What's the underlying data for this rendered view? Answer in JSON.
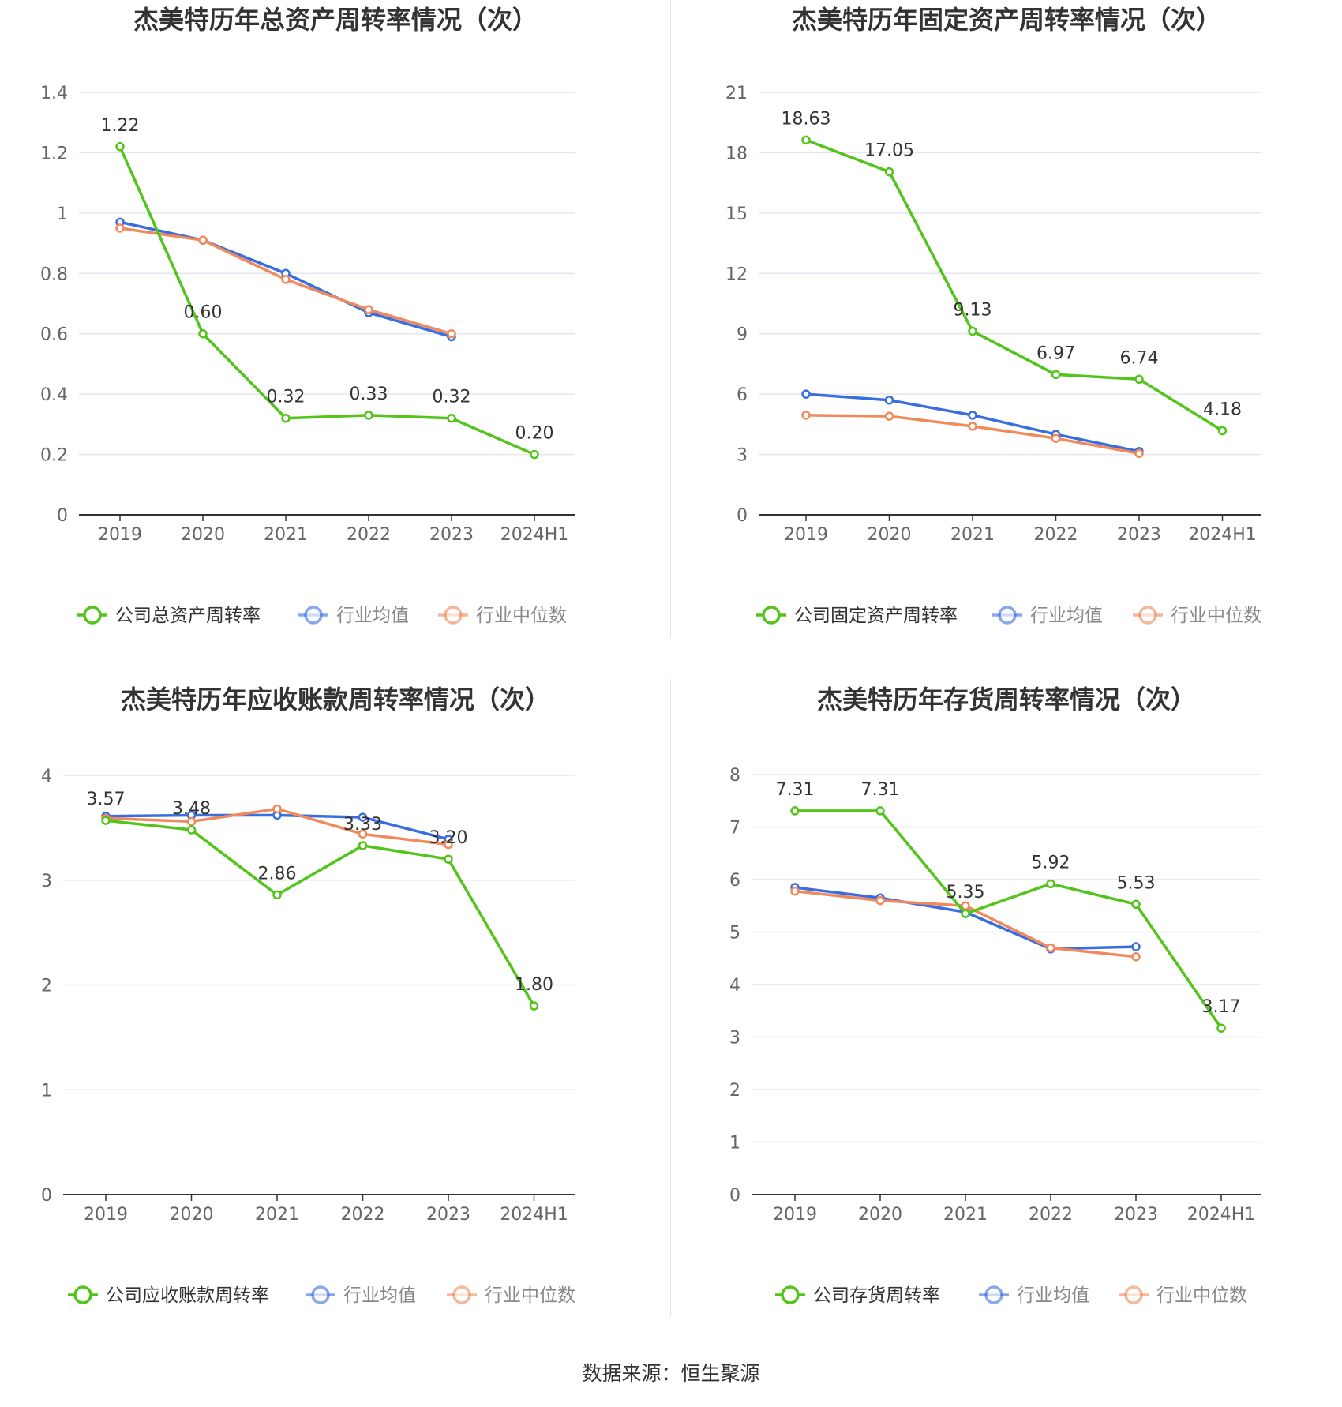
{
  "source_text": "数据来源：恒生聚源",
  "colors": {
    "company": "#52c41a",
    "avg": "#3a6ee0",
    "median": "#f08a5d",
    "grid": "#e3e6ef",
    "axis": "#333333",
    "tick": "#666666"
  },
  "chart_data": [
    {
      "type": "line",
      "title": "杰美特历年总资产周转率情况（次）",
      "categories": [
        "2019",
        "2020",
        "2021",
        "2022",
        "2023",
        "2024H1"
      ],
      "yticks": [
        "0",
        "0.2",
        "0.4",
        "0.6",
        "0.8",
        "1",
        "1.2",
        "1.4"
      ],
      "ylim": [
        0,
        1.4
      ],
      "series": [
        {
          "name": "公司总资产周转率",
          "color": "#52c41a",
          "values": [
            1.22,
            0.6,
            0.32,
            0.33,
            0.32,
            0.2
          ],
          "labels": [
            "1.22",
            "0.60",
            "0.32",
            "0.33",
            "0.32",
            "0.20"
          ]
        },
        {
          "name": "行业均值",
          "color": "#3a6ee0",
          "values": [
            0.97,
            0.91,
            0.8,
            0.67,
            0.59,
            null
          ]
        },
        {
          "name": "行业中位数",
          "color": "#f08a5d",
          "values": [
            0.95,
            0.91,
            0.78,
            0.68,
            0.6,
            null
          ]
        }
      ]
    },
    {
      "type": "line",
      "title": "杰美特历年固定资产周转率情况（次）",
      "categories": [
        "2019",
        "2020",
        "2021",
        "2022",
        "2023",
        "2024H1"
      ],
      "yticks": [
        "0",
        "3",
        "6",
        "9",
        "12",
        "15",
        "18",
        "21"
      ],
      "ylim": [
        0,
        21
      ],
      "series": [
        {
          "name": "公司固定资产周转率",
          "color": "#52c41a",
          "values": [
            18.63,
            17.05,
            9.13,
            6.97,
            6.74,
            4.18
          ],
          "labels": [
            "18.63",
            "17.05",
            "9.13",
            "6.97",
            "6.74",
            "4.18"
          ]
        },
        {
          "name": "行业均值",
          "color": "#3a6ee0",
          "values": [
            6.0,
            5.7,
            4.95,
            4.0,
            3.15,
            null
          ]
        },
        {
          "name": "行业中位数",
          "color": "#f08a5d",
          "values": [
            4.95,
            4.9,
            4.4,
            3.8,
            3.05,
            null
          ]
        }
      ]
    },
    {
      "type": "line",
      "title": "杰美特历年应收账款周转率情况（次）",
      "categories": [
        "2019",
        "2020",
        "2021",
        "2022",
        "2023",
        "2024H1"
      ],
      "yticks": [
        "0",
        "1",
        "2",
        "3",
        "4"
      ],
      "ylim": [
        0,
        4
      ],
      "series": [
        {
          "name": "公司应收账款周转率",
          "color": "#52c41a",
          "values": [
            3.57,
            3.48,
            2.86,
            3.33,
            3.2,
            1.8
          ],
          "labels": [
            "3.57",
            "3.48",
            "2.86",
            "3.33",
            "3.20",
            "1.80"
          ]
        },
        {
          "name": "行业均值",
          "color": "#3a6ee0",
          "values": [
            3.61,
            3.62,
            3.62,
            3.6,
            3.39,
            null
          ]
        },
        {
          "name": "行业中位数",
          "color": "#f08a5d",
          "values": [
            3.59,
            3.56,
            3.68,
            3.44,
            3.34,
            null
          ]
        }
      ]
    },
    {
      "type": "line",
      "title": "杰美特历年存货周转率情况（次）",
      "categories": [
        "2019",
        "2020",
        "2021",
        "2022",
        "2023",
        "2024H1"
      ],
      "yticks": [
        "0",
        "1",
        "2",
        "3",
        "4",
        "5",
        "6",
        "7",
        "8"
      ],
      "ylim": [
        0,
        8
      ],
      "series": [
        {
          "name": "公司存货周转率",
          "color": "#52c41a",
          "values": [
            7.31,
            7.31,
            5.35,
            5.92,
            5.53,
            3.17
          ],
          "labels": [
            "7.31",
            "7.31",
            "5.35",
            "5.92",
            "5.53",
            "3.17"
          ]
        },
        {
          "name": "行业均值",
          "color": "#3a6ee0",
          "values": [
            5.85,
            5.65,
            5.38,
            4.68,
            4.72,
            null
          ]
        },
        {
          "name": "行业中位数",
          "color": "#f08a5d",
          "values": [
            5.78,
            5.6,
            5.5,
            4.7,
            4.53,
            null
          ]
        }
      ]
    }
  ]
}
